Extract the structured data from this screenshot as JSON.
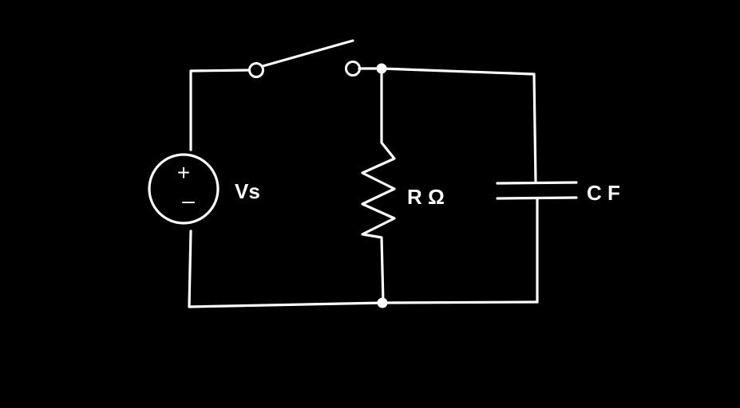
{
  "labels": {
    "source": "Vs",
    "resistor": "R Ω",
    "capacitor": "C F",
    "plus": "+",
    "minus": "–"
  },
  "components": [
    {
      "kind": "voltage-source",
      "label_key": "source"
    },
    {
      "kind": "switch",
      "state": "open"
    },
    {
      "kind": "resistor",
      "label_key": "resistor"
    },
    {
      "kind": "capacitor",
      "label_key": "capacitor"
    }
  ],
  "colors": {
    "background": "#000000",
    "stroke": "#ffffff"
  }
}
